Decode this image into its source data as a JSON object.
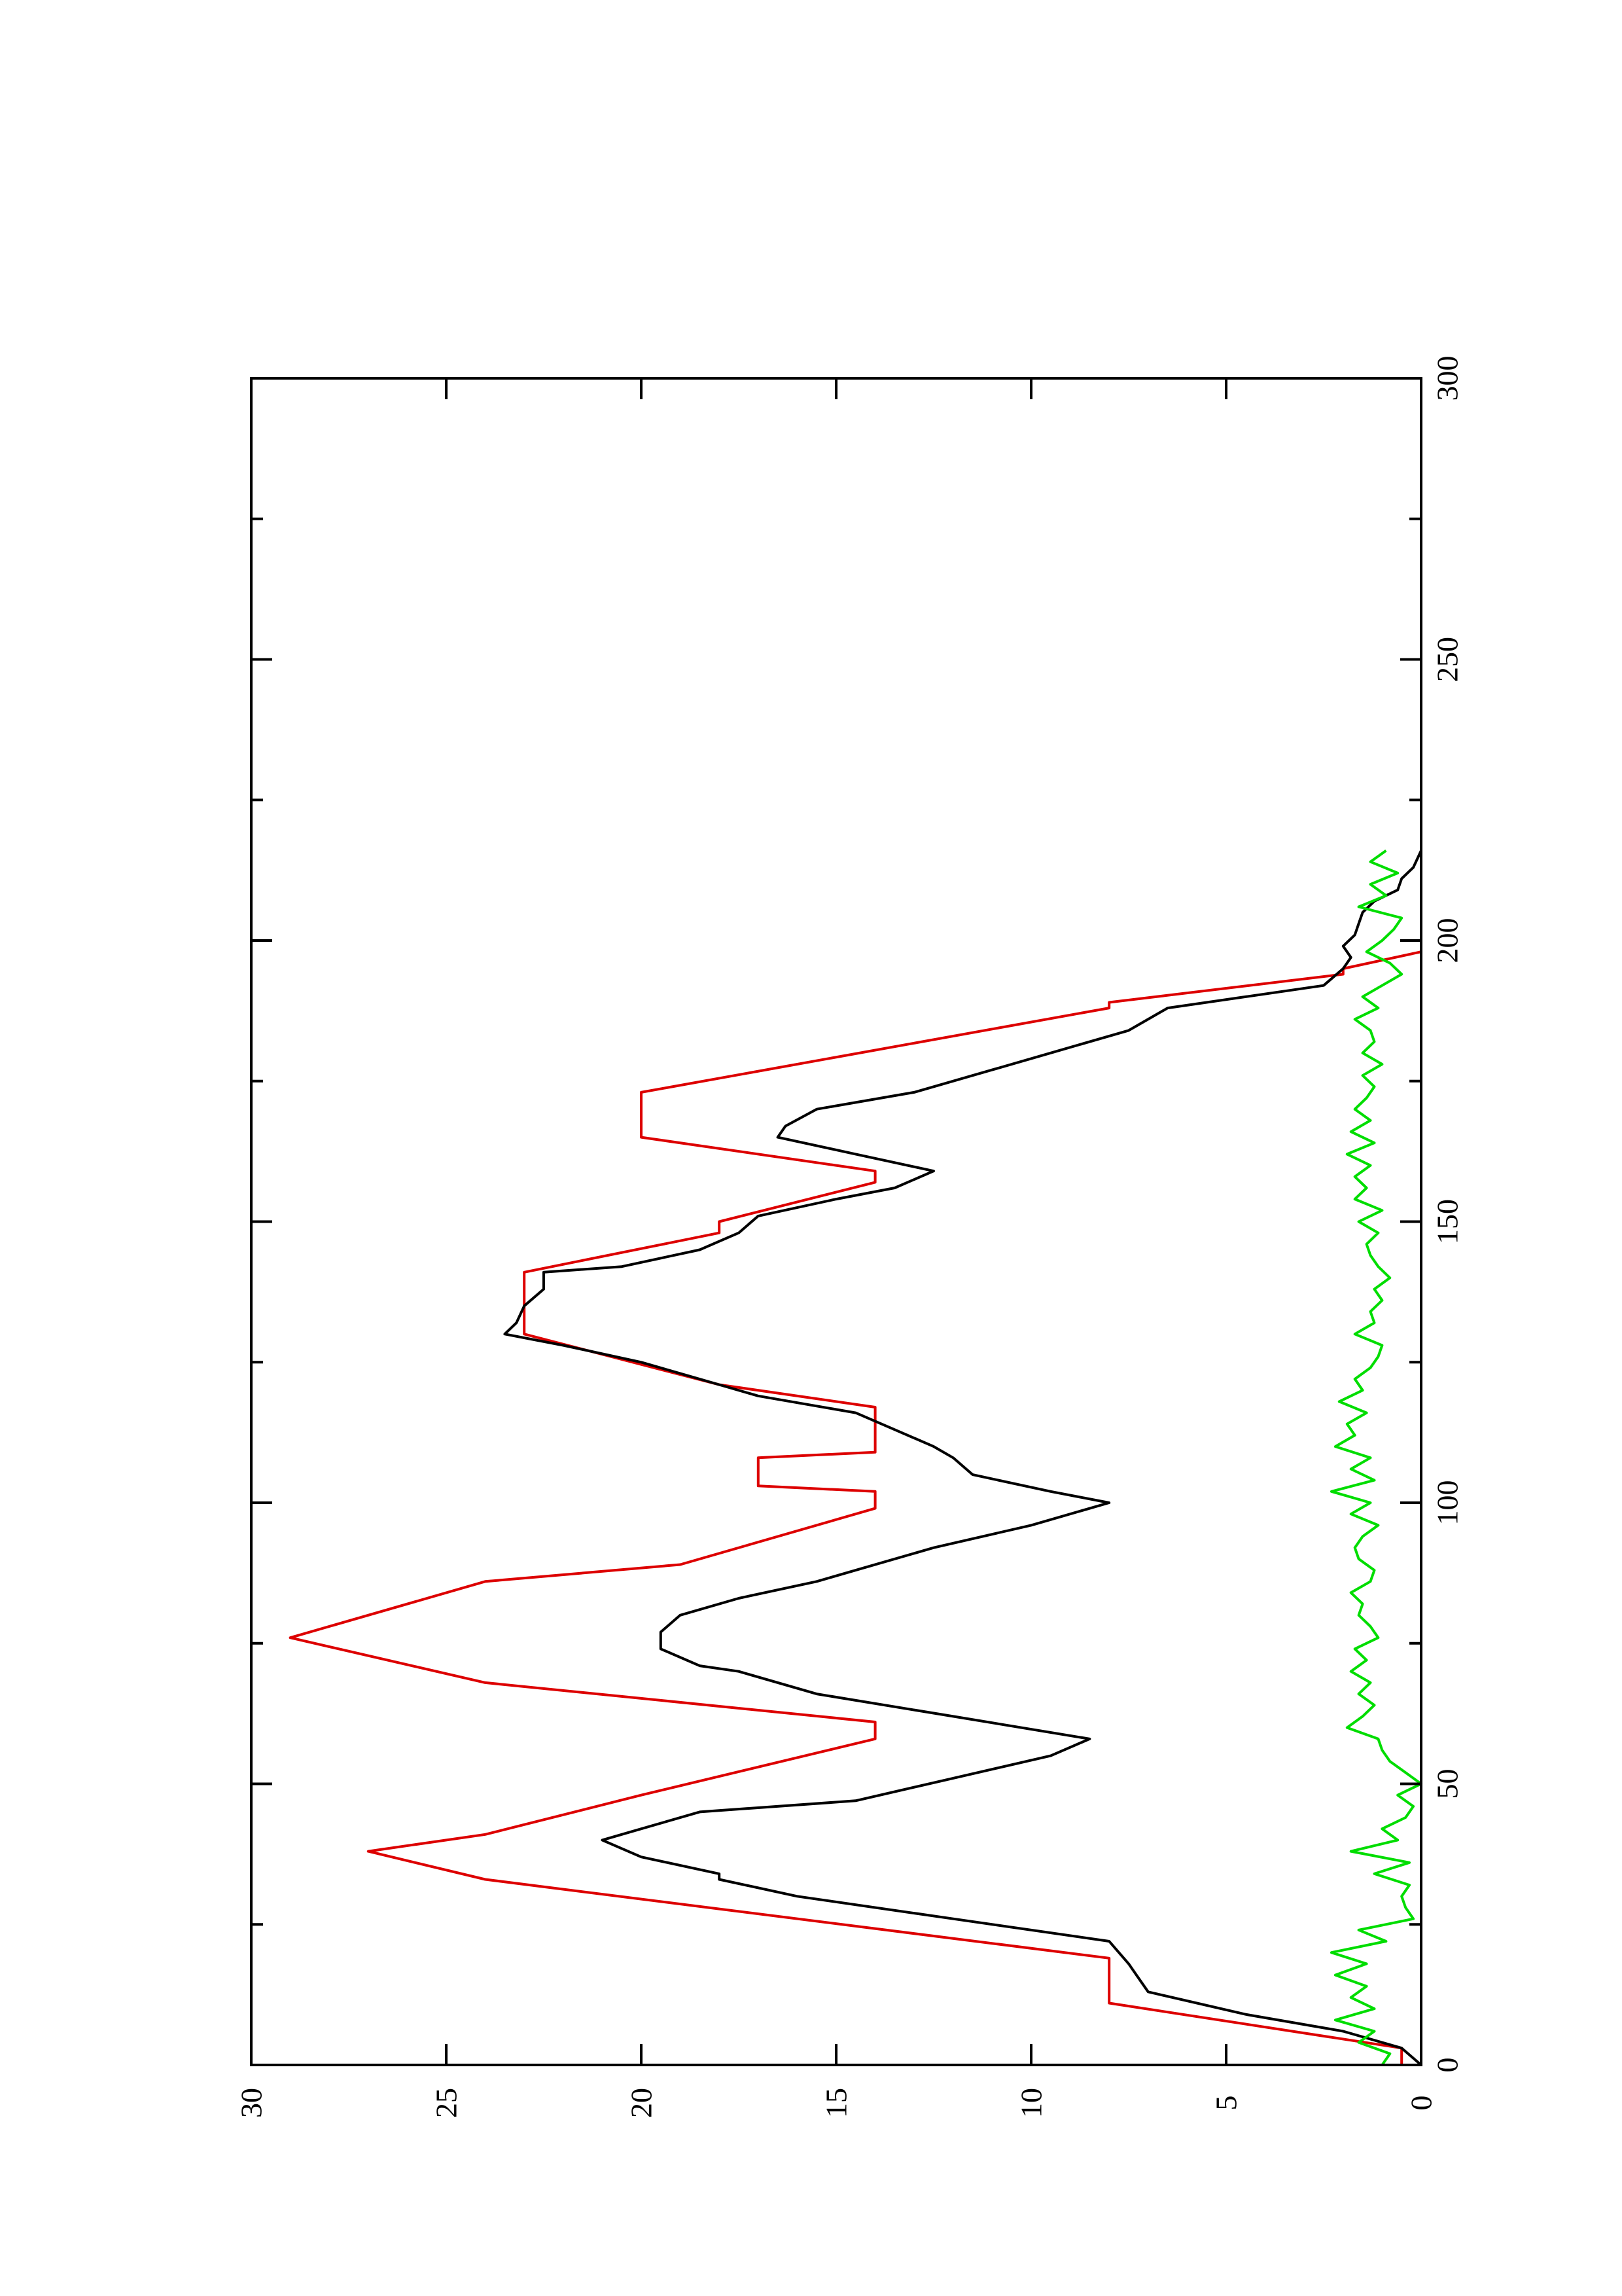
{
  "chart_data": {
    "type": "line",
    "orientation": "rotated-90",
    "title": "",
    "xlabel": "",
    "ylabel": "",
    "xlim": [
      0,
      300
    ],
    "ylim": [
      0,
      30
    ],
    "grid": false,
    "x_ticks_major": [
      0,
      50,
      100,
      150,
      200,
      250,
      300
    ],
    "x_ticks_minor": [
      25,
      75,
      125,
      175,
      225,
      275
    ],
    "y_ticks_major": [
      0,
      5,
      10,
      15,
      20,
      25,
      30
    ],
    "x_tick_labels": [
      "0",
      "50",
      "100",
      "150",
      "200",
      "250",
      "300"
    ],
    "y_tick_labels": [
      "0",
      "5",
      "10",
      "15",
      "20",
      "25",
      "30"
    ],
    "colors": {
      "axis": "#000000",
      "background": "#ffffff"
    },
    "series": [
      {
        "color": "#dd0000",
        "x": [
          0,
          3,
          11,
          19,
          33,
          38,
          41,
          48,
          58,
          61,
          68,
          76,
          86,
          89,
          99,
          102,
          103,
          108,
          109,
          117,
          121,
          130,
          131,
          140,
          141,
          148,
          150,
          157,
          159,
          165,
          166,
          172,
          173,
          188,
          189,
          194,
          195,
          198
        ],
        "values": [
          0.5,
          0.5,
          8,
          8,
          24,
          27,
          24,
          20,
          14,
          14,
          24,
          29,
          24,
          19,
          14,
          14,
          17,
          17,
          14,
          14,
          18,
          23,
          23,
          23,
          23,
          18,
          18,
          14,
          14,
          20,
          20,
          20,
          20,
          8,
          8,
          2,
          2,
          0
        ]
      },
      {
        "color": "#000000",
        "x": [
          0,
          3,
          6,
          9,
          13,
          16,
          18,
          22,
          26,
          30,
          33,
          34,
          37,
          40,
          41,
          45,
          47,
          51,
          55,
          58,
          62,
          66,
          70,
          71,
          74,
          77,
          80,
          83,
          86,
          88,
          92,
          96,
          100,
          102,
          105,
          108,
          110,
          113,
          116,
          119,
          122,
          125,
          128,
          130,
          132,
          135,
          138,
          141,
          142,
          145,
          148,
          151,
          154,
          156,
          159,
          162,
          165,
          167,
          170,
          173,
          177,
          180,
          184,
          188,
          190,
          192,
          195,
          197,
          199,
          201,
          203,
          205,
          207,
          209,
          211,
          213,
          216
        ],
        "values": [
          0,
          0.5,
          2,
          4.5,
          7,
          7.3,
          7.5,
          8,
          12,
          16,
          18,
          18,
          20,
          21,
          20.5,
          18.5,
          14.5,
          12,
          9.5,
          8.5,
          12,
          15.5,
          17.5,
          18.5,
          19.5,
          19.5,
          19,
          17.5,
          15.5,
          14.5,
          12.5,
          10,
          8,
          9.5,
          11.5,
          12,
          12.5,
          13.5,
          14.5,
          17,
          18.5,
          20,
          22,
          23.5,
          23.2,
          23,
          22.5,
          22.5,
          20.5,
          18.5,
          17.5,
          17,
          15,
          13.5,
          12.5,
          14.5,
          16.5,
          16.3,
          15.5,
          13,
          11,
          9.5,
          7.5,
          6.5,
          4.5,
          2.5,
          2,
          1.8,
          2,
          1.7,
          1.6,
          1.5,
          1.2,
          0.6,
          0.5,
          0.2,
          0
        ]
      },
      {
        "color": "#00dd00",
        "x": [
          0,
          2,
          4,
          6,
          8,
          10,
          12,
          14,
          16,
          18,
          20,
          22,
          24,
          26,
          28,
          30,
          32,
          34,
          36,
          38,
          40,
          42,
          44,
          46,
          48,
          50,
          52,
          54,
          56,
          58,
          60,
          62,
          64,
          66,
          68,
          70,
          72,
          74,
          76,
          78,
          80,
          82,
          84,
          86,
          88,
          90,
          92,
          94,
          96,
          98,
          100,
          102,
          104,
          106,
          108,
          110,
          112,
          114,
          116,
          118,
          120,
          122,
          124,
          126,
          128,
          130,
          132,
          134,
          136,
          138,
          140,
          142,
          144,
          146,
          148,
          150,
          152,
          154,
          156,
          158,
          160,
          162,
          164,
          166,
          168,
          170,
          172,
          174,
          176,
          178,
          180,
          182,
          184,
          186,
          188,
          190,
          192,
          194,
          196,
          198,
          200,
          202,
          204,
          206,
          208,
          210,
          212,
          214,
          216
        ],
        "values": [
          1,
          0.8,
          1.6,
          1.2,
          2.2,
          1.2,
          1.8,
          1.4,
          2.2,
          1.4,
          2.3,
          0.9,
          1.6,
          0.2,
          0.4,
          0.5,
          0.3,
          1.2,
          0.3,
          1.8,
          0.6,
          1,
          0.4,
          0.2,
          0.6,
          0,
          0.4,
          0.8,
          1,
          1.1,
          1.9,
          1.5,
          1.2,
          1.6,
          1.3,
          1.8,
          1.4,
          1.7,
          1.1,
          1.3,
          1.6,
          1.5,
          1.8,
          1.3,
          1.2,
          1.6,
          1.7,
          1.5,
          1.1,
          1.8,
          1.3,
          2.3,
          1.2,
          1.8,
          1.3,
          2.2,
          1.7,
          1.9,
          1.4,
          2.1,
          1.5,
          1.7,
          1.3,
          1.1,
          1,
          1.7,
          1.2,
          1.3,
          1,
          1.2,
          0.8,
          1.1,
          1.3,
          1.4,
          1.1,
          1.6,
          1,
          1.7,
          1.4,
          1.7,
          1.3,
          1.9,
          1.2,
          1.8,
          1.3,
          1.7,
          1.4,
          1.2,
          1.5,
          1,
          1.5,
          1.2,
          1.3,
          1.7,
          1.1,
          1.5,
          1,
          0.5,
          0.8,
          1.4,
          1,
          0.7,
          0.5,
          1.6,
          0.9,
          1.3,
          0.6,
          1.3,
          0.9
        ]
      }
    ]
  }
}
